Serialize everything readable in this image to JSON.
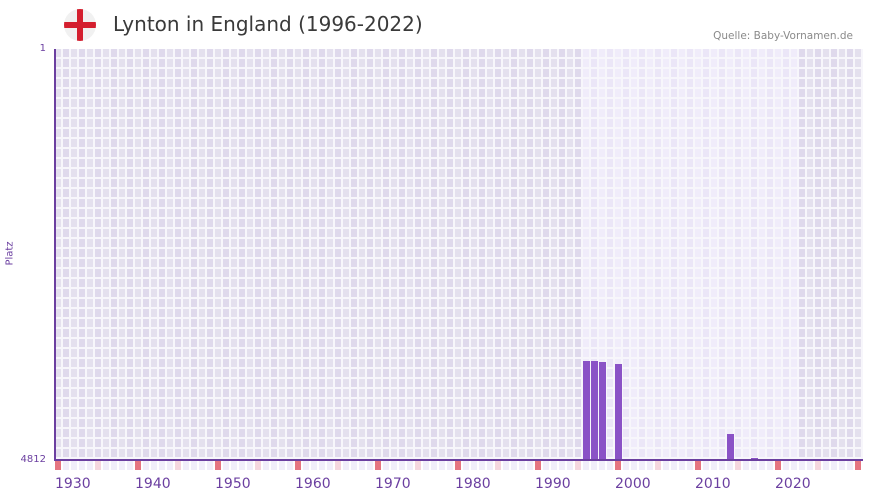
{
  "header": {
    "title": "Lynton in England (1996-2022)",
    "source": "Quelle: Baby-Vornamen.de",
    "flag_icon": "england-flag-icon"
  },
  "axes": {
    "y_top_label": "1",
    "y_bottom_label": "4812",
    "y_title": "Platz",
    "x_labels": [
      "1930",
      "1940",
      "1950",
      "1960",
      "1970",
      "1980",
      "1990",
      "2000",
      "2010",
      "2020"
    ]
  },
  "colors": {
    "bar": "#8a52c6",
    "axis": "#6b3fa0",
    "grid_dark_a": "#e4e0ee",
    "grid_dark_b": "#dfd9ec",
    "grid_light_a": "#f0ecfa",
    "grid_light_b": "#ebe6f7",
    "marker_decade": "#e57581",
    "marker_half": "#f5d6de"
  },
  "chart_data": {
    "type": "bar",
    "title": "Lynton in England (1996-2022)",
    "xlabel": "",
    "ylabel": "Platz",
    "ylim": [
      4812,
      1
    ],
    "xlim": [
      1930,
      2030
    ],
    "highlight_range": [
      1996,
      2022
    ],
    "x": [
      1996,
      1997,
      1998,
      2000,
      2014,
      2017
    ],
    "values": [
      3653,
      3653,
      3665,
      3688,
      4508,
      4789
    ],
    "grid": true,
    "legend": "none"
  }
}
